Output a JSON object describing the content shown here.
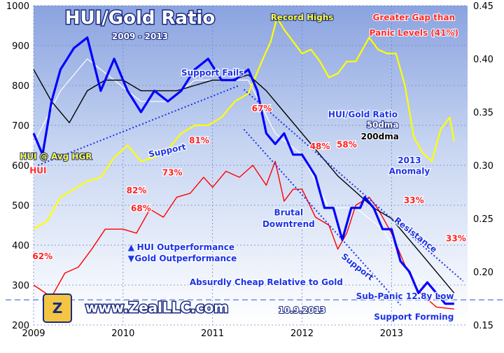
{
  "chart_data": {
    "type": "line",
    "title": "HUI/Gold Ratio",
    "subtitle": "2009 - 2013",
    "x_ticks": [
      "2009",
      "2010",
      "2011",
      "2012",
      "2013"
    ],
    "x_range": [
      2009.0,
      2013.85
    ],
    "y_left": {
      "range": [
        200,
        1000
      ],
      "ticks": [
        200,
        300,
        400,
        500,
        600,
        700,
        800,
        900,
        1000
      ]
    },
    "y_right": {
      "range": [
        0.15,
        0.45
      ],
      "ticks": [
        "0.15",
        "0.20",
        "0.25",
        "0.30",
        "0.35",
        "0.40",
        "0.45"
      ]
    },
    "grid": true,
    "series": [
      {
        "name": "HUI",
        "axis": "left",
        "color": "#ff0000",
        "x": [
          2009.0,
          2009.2,
          2009.35,
          2009.5,
          2009.65,
          2009.8,
          2010.0,
          2010.15,
          2010.3,
          2010.45,
          2010.6,
          2010.75,
          2010.9,
          2011.0,
          2011.15,
          2011.3,
          2011.45,
          2011.6,
          2011.7,
          2011.8,
          2011.9,
          2012.0,
          2012.15,
          2012.3,
          2012.4,
          2012.5,
          2012.6,
          2012.75,
          2012.85,
          2013.0,
          2013.15,
          2013.3,
          2013.5,
          2013.7
        ],
        "y": [
          300,
          270,
          330,
          345,
          390,
          440,
          440,
          430,
          490,
          470,
          520,
          530,
          570,
          545,
          585,
          570,
          600,
          550,
          610,
          510,
          540,
          540,
          470,
          450,
          390,
          430,
          500,
          520,
          490,
          430,
          350,
          285,
          245,
          240
        ]
      },
      {
        "name": "HUI @ Avg HGR",
        "axis": "left",
        "color": "#ffff00",
        "x": [
          2009.0,
          2009.15,
          2009.3,
          2009.45,
          2009.6,
          2009.75,
          2009.9,
          2010.05,
          2010.2,
          2010.35,
          2010.5,
          2010.65,
          2010.8,
          2010.95,
          2011.1,
          2011.25,
          2011.4,
          2011.55,
          2011.65,
          2011.72,
          2011.8,
          2011.9,
          2012.0,
          2012.1,
          2012.2,
          2012.3,
          2012.4,
          2012.5,
          2012.6,
          2012.75,
          2012.85,
          2012.95,
          2013.05,
          2013.15,
          2013.25,
          2013.35,
          2013.45,
          2013.55,
          2013.65,
          2013.7
        ],
        "y": [
          440,
          460,
          520,
          540,
          560,
          570,
          620,
          650,
          610,
          620,
          640,
          680,
          700,
          700,
          720,
          760,
          780,
          860,
          910,
          970,
          940,
          910,
          880,
          890,
          860,
          820,
          830,
          860,
          860,
          920,
          890,
          880,
          880,
          800,
          670,
          630,
          610,
          690,
          720,
          660
        ]
      },
      {
        "name": "HUI/Gold Ratio",
        "axis": "right",
        "color": "#0000ff",
        "x": [
          2009.0,
          2009.1,
          2009.2,
          2009.3,
          2009.45,
          2009.6,
          2009.75,
          2009.9,
          2010.05,
          2010.2,
          2010.35,
          2010.5,
          2010.65,
          2010.8,
          2010.95,
          2011.1,
          2011.25,
          2011.4,
          2011.5,
          2011.6,
          2011.7,
          2011.8,
          2011.9,
          2012.0,
          2012.15,
          2012.25,
          2012.35,
          2012.45,
          2012.55,
          2012.65,
          2012.7,
          2012.8,
          2012.9,
          2013.0,
          2013.1,
          2013.2,
          2013.3,
          2013.4,
          2013.5,
          2013.6,
          2013.7
        ],
        "y": [
          0.33,
          0.31,
          0.36,
          0.39,
          0.41,
          0.42,
          0.37,
          0.4,
          0.37,
          0.35,
          0.37,
          0.36,
          0.37,
          0.39,
          0.4,
          0.38,
          0.38,
          0.39,
          0.37,
          0.33,
          0.32,
          0.33,
          0.31,
          0.31,
          0.29,
          0.26,
          0.26,
          0.23,
          0.26,
          0.26,
          0.27,
          0.26,
          0.24,
          0.24,
          0.21,
          0.2,
          0.18,
          0.19,
          0.18,
          0.17,
          0.17
        ]
      },
      {
        "name": "50dma",
        "axis": "right",
        "color": "#ffffff",
        "x": [
          2009.0,
          2009.3,
          2009.6,
          2009.9,
          2010.2,
          2010.5,
          2010.8,
          2011.1,
          2011.4,
          2011.7,
          2012.0,
          2012.3,
          2012.6,
          2012.9,
          2013.2,
          2013.5,
          2013.7
        ],
        "y": [
          0.32,
          0.37,
          0.4,
          0.38,
          0.36,
          0.36,
          0.38,
          0.38,
          0.38,
          0.33,
          0.31,
          0.26,
          0.26,
          0.24,
          0.2,
          0.18,
          0.17
        ]
      },
      {
        "name": "200dma",
        "axis": "right",
        "color": "#000000",
        "x": [
          2009.0,
          2009.2,
          2009.4,
          2009.6,
          2009.8,
          2010.0,
          2010.2,
          2010.4,
          2010.6,
          2010.8,
          2011.0,
          2011.2,
          2011.4,
          2011.6,
          2011.8,
          2012.0,
          2012.2,
          2012.4,
          2012.6,
          2012.8,
          2013.0,
          2013.2,
          2013.4,
          2013.6,
          2013.7
        ],
        "y": [
          0.39,
          0.36,
          0.34,
          0.37,
          0.38,
          0.38,
          0.37,
          0.37,
          0.37,
          0.375,
          0.38,
          0.38,
          0.385,
          0.37,
          0.35,
          0.33,
          0.31,
          0.29,
          0.275,
          0.26,
          0.25,
          0.23,
          0.21,
          0.19,
          0.18
        ]
      }
    ],
    "percent_labels": [
      {
        "text": "62%",
        "x": 2009.1,
        "y": 365
      },
      {
        "text": "68%",
        "x": 2010.2,
        "y": 485
      },
      {
        "text": "82%",
        "x": 2010.15,
        "y": 530
      },
      {
        "text": "73%",
        "x": 2010.55,
        "y": 575
      },
      {
        "text": "81%",
        "x": 2010.85,
        "y": 655
      },
      {
        "text": "67%",
        "x": 2011.55,
        "y": 735
      },
      {
        "text": "48%",
        "x": 2012.2,
        "y": 640
      },
      {
        "text": "58%",
        "x": 2012.5,
        "y": 645
      },
      {
        "text": "33%",
        "x": 2013.25,
        "y": 505
      },
      {
        "text": "33%",
        "x": 2013.72,
        "y": 410
      }
    ],
    "annotations": [
      {
        "text": "Record Highs",
        "x": 2012.0,
        "y": 963,
        "color": "#ffff33"
      },
      {
        "text": "Greater Gap than",
        "x": 2013.25,
        "y": 963,
        "color": "#ff2a2a"
      },
      {
        "text": "Panic Levels (41%)",
        "x": 2013.25,
        "y": 925,
        "color": "#ff2a2a"
      },
      {
        "text": "Support Fails",
        "x": 2011.0,
        "y": 825,
        "color": "#1c33e6"
      },
      {
        "text": "HUI/Gold Ratio",
        "x": 2012.68,
        "y": 720,
        "color": "#1c33e6"
      },
      {
        "text": "50dma",
        "x": 2012.9,
        "y": 694,
        "color": "#ffffff"
      },
      {
        "text": "200dma",
        "x": 2012.87,
        "y": 665,
        "color": "#000000"
      },
      {
        "text": "Support",
        "x": 2010.5,
        "y": 630,
        "color": "#1c33e6",
        "rotate": -12
      },
      {
        "text": "HUI @ Avg HGR",
        "x": 2009.25,
        "y": 615,
        "color": "#ffff33"
      },
      {
        "text": "HUI",
        "x": 2009.05,
        "y": 580,
        "color": "#ff2a2a"
      },
      {
        "text": "2013",
        "x": 2013.2,
        "y": 605,
        "color": "#1c33e6"
      },
      {
        "text": "Anomaly",
        "x": 2013.2,
        "y": 578,
        "color": "#1c33e6"
      },
      {
        "text": "Brutal",
        "x": 2011.85,
        "y": 475,
        "color": "#1c33e6"
      },
      {
        "text": "Downtrend",
        "x": 2011.85,
        "y": 446,
        "color": "#1c33e6"
      },
      {
        "text": "Resistance",
        "x": 2013.25,
        "y": 420,
        "color": "#1c33e6",
        "rotate": 38
      },
      {
        "text": "Support",
        "x": 2012.6,
        "y": 340,
        "color": "#1c33e6",
        "rotate": 38
      },
      {
        "text": "HUI Outperformance",
        "x": 2010.7,
        "y": 388,
        "color": "#1c33e6",
        "arrow": "▲"
      },
      {
        "text": "Gold Outperformance",
        "x": 2010.7,
        "y": 360,
        "color": "#1c33e6",
        "arrow": "▼"
      },
      {
        "text": "Absurdly Cheap Relative to Gold",
        "x": 2011.6,
        "y": 300,
        "color": "#1c33e6"
      },
      {
        "text": "Sub-Panic 12.8y Low",
        "x": 2013.15,
        "y": 265,
        "color": "#1c33e6"
      },
      {
        "text": "10.9.2013",
        "x": 2012.0,
        "y": 230,
        "color": "#ffffff"
      },
      {
        "text": "Support Forming",
        "x": 2013.25,
        "y": 213,
        "color": "#1c33e6"
      }
    ],
    "watermark": "www.ZealLLC.com"
  }
}
